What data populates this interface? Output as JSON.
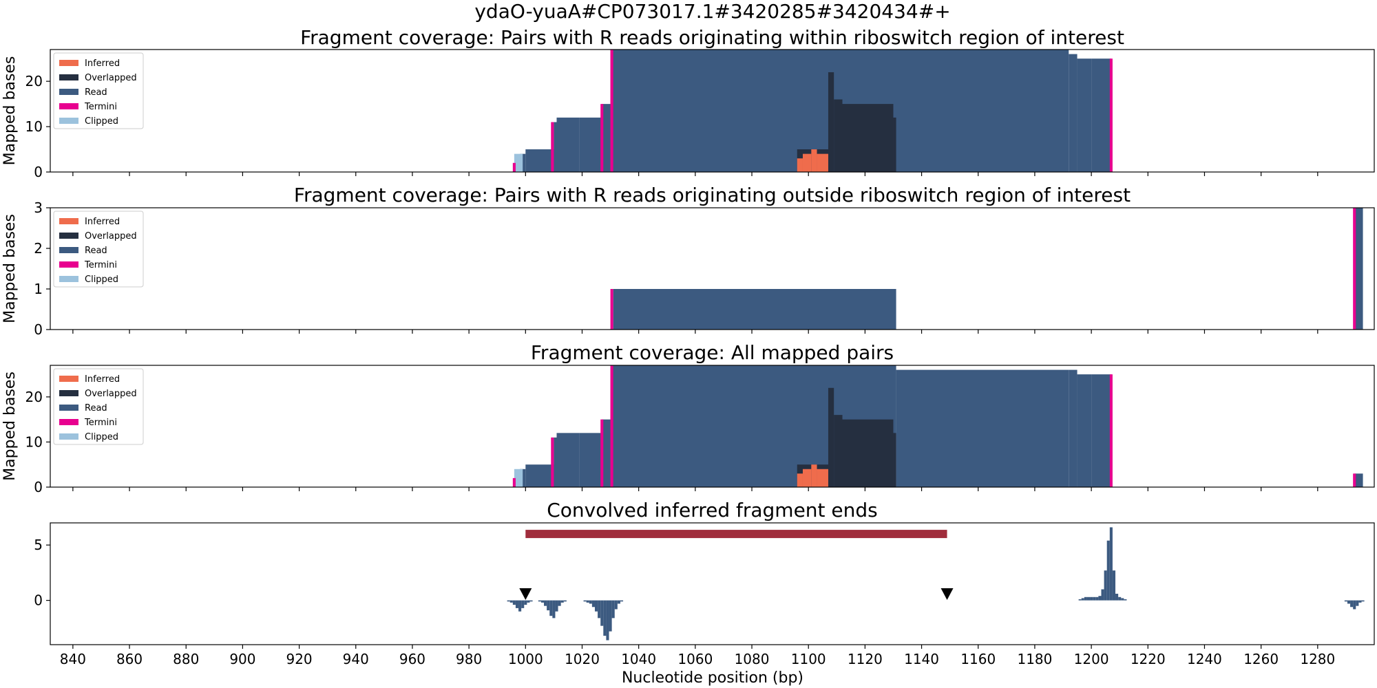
{
  "figure": {
    "title": "ydaO-yuaA#CP073017.1#3420285#3420434#+",
    "xlabel": "Nucleotide position (bp)",
    "xticks": [
      840,
      860,
      880,
      900,
      920,
      940,
      960,
      980,
      1000,
      1020,
      1040,
      1060,
      1080,
      1100,
      1120,
      1140,
      1160,
      1180,
      1200,
      1220,
      1240,
      1260,
      1280
    ],
    "xlim": [
      832,
      1300
    ]
  },
  "colors": {
    "inferred": "#ef6c4c",
    "overlapped": "#252f40",
    "read": "#3c5a80",
    "termini": "#e8008f",
    "clipped": "#9cc2dd",
    "region_bar": "#a02d3c",
    "marker": "#000000"
  },
  "legend": [
    {
      "label": "Inferred",
      "color_key": "inferred"
    },
    {
      "label": "Overlapped",
      "color_key": "overlapped"
    },
    {
      "label": "Read",
      "color_key": "read"
    },
    {
      "label": "Termini",
      "color_key": "termini"
    },
    {
      "label": "Clipped",
      "color_key": "clipped"
    }
  ],
  "chart_data": [
    {
      "type": "area",
      "title": "Fragment coverage: Pairs with R reads originating within riboswitch region of interest",
      "ylabel": "Mapped bases",
      "ylim": [
        0,
        27
      ],
      "yticks": [
        0,
        10,
        20
      ],
      "series": [
        {
          "name": "Read",
          "color_key": "read",
          "steps": [
            [
              996,
              998,
              2
            ],
            [
              998,
              1000,
              4
            ],
            [
              1000,
              1010,
              5
            ],
            [
              1010,
              1011,
              11
            ],
            [
              1011,
              1019,
              12
            ],
            [
              1019,
              1027,
              12
            ],
            [
              1027,
              1030,
              15
            ],
            [
              1030,
              1192,
              27
            ],
            [
              1192,
              1195,
              26
            ],
            [
              1195,
              1200,
              25
            ],
            [
              1200,
              1207,
              25
            ]
          ]
        },
        {
          "name": "Overlapped",
          "color_key": "overlapped",
          "steps": [
            [
              1096,
              1107,
              5
            ],
            [
              1107,
              1109,
              22
            ],
            [
              1109,
              1112,
              16
            ],
            [
              1112,
              1130,
              15
            ],
            [
              1130,
              1131,
              12
            ]
          ]
        },
        {
          "name": "Inferred",
          "color_key": "inferred",
          "steps": [
            [
              1096,
              1098,
              3
            ],
            [
              1098,
              1101,
              4
            ],
            [
              1101,
              1103,
              5
            ],
            [
              1103,
              1107,
              4
            ]
          ]
        },
        {
          "name": "Clipped",
          "color_key": "clipped",
          "steps": [
            [
              996,
              999,
              4
            ]
          ]
        },
        {
          "name": "Termini",
          "color_key": "termini",
          "steps": [
            [
              995.5,
              996.5,
              2
            ],
            [
              1009,
              1010,
              11
            ],
            [
              1026.5,
              1027.5,
              15
            ],
            [
              1030,
              1031,
              27
            ],
            [
              1206.5,
              1207.5,
              25
            ]
          ]
        }
      ]
    },
    {
      "type": "area",
      "title": "Fragment coverage: Pairs with R reads originating outside riboswitch region of interest",
      "ylabel": "Mapped bases",
      "ylim": [
        0,
        3
      ],
      "yticks": [
        0,
        1,
        2,
        3
      ],
      "series": [
        {
          "name": "Read",
          "color_key": "read",
          "steps": [
            [
              1031,
              1131,
              1
            ],
            [
              1293,
              1296,
              3
            ]
          ]
        },
        {
          "name": "Termini",
          "color_key": "termini",
          "steps": [
            [
              1030,
              1031,
              1
            ],
            [
              1292.5,
              1293.5,
              3
            ]
          ]
        }
      ]
    },
    {
      "type": "area",
      "title": "Fragment coverage: All mapped pairs",
      "ylabel": "Mapped bases",
      "ylim": [
        0,
        27
      ],
      "yticks": [
        0,
        10,
        20
      ],
      "series": [
        {
          "name": "Read",
          "color_key": "read",
          "steps": [
            [
              996,
              998,
              2
            ],
            [
              998,
              1000,
              4
            ],
            [
              1000,
              1010,
              5
            ],
            [
              1010,
              1011,
              11
            ],
            [
              1011,
              1019,
              12
            ],
            [
              1019,
              1027,
              12
            ],
            [
              1027,
              1030,
              15
            ],
            [
              1030,
              1131,
              28
            ],
            [
              1131,
              1192,
              26
            ],
            [
              1192,
              1195,
              26
            ],
            [
              1195,
              1200,
              25
            ],
            [
              1200,
              1207,
              25
            ],
            [
              1293,
              1296,
              3
            ]
          ]
        },
        {
          "name": "Overlapped",
          "color_key": "overlapped",
          "steps": [
            [
              1096,
              1107,
              5
            ],
            [
              1107,
              1109,
              22
            ],
            [
              1109,
              1112,
              16
            ],
            [
              1112,
              1130,
              15
            ],
            [
              1130,
              1131,
              12
            ]
          ]
        },
        {
          "name": "Inferred",
          "color_key": "inferred",
          "steps": [
            [
              1096,
              1098,
              3
            ],
            [
              1098,
              1101,
              4
            ],
            [
              1101,
              1103,
              5
            ],
            [
              1103,
              1107,
              4
            ]
          ]
        },
        {
          "name": "Clipped",
          "color_key": "clipped",
          "steps": [
            [
              996,
              999,
              4
            ]
          ]
        },
        {
          "name": "Termini",
          "color_key": "termini",
          "steps": [
            [
              995.5,
              996.5,
              2
            ],
            [
              1009,
              1010,
              11
            ],
            [
              1026.5,
              1027.5,
              15
            ],
            [
              1030,
              1031,
              28
            ],
            [
              1206.5,
              1207.5,
              25
            ],
            [
              1292.5,
              1293.5,
              3
            ]
          ]
        }
      ]
    },
    {
      "type": "bar",
      "title": "Convolved inferred fragment ends",
      "ylim": [
        -4,
        7
      ],
      "yticks": [
        0,
        5
      ],
      "bar_width": 1,
      "values": [
        [
          994,
          -0.1
        ],
        [
          995,
          -0.2
        ],
        [
          996,
          -0.4
        ],
        [
          997,
          -0.7
        ],
        [
          998,
          -1.0
        ],
        [
          999,
          -0.7
        ],
        [
          1000,
          -0.4
        ],
        [
          1001,
          -0.2
        ],
        [
          1002,
          -0.1
        ],
        [
          1005,
          -0.1
        ],
        [
          1006,
          -0.2
        ],
        [
          1007,
          -0.5
        ],
        [
          1008,
          -0.9
        ],
        [
          1009,
          -1.4
        ],
        [
          1010,
          -1.6
        ],
        [
          1011,
          -1.0
        ],
        [
          1012,
          -0.5
        ],
        [
          1013,
          -0.2
        ],
        [
          1014,
          -0.1
        ],
        [
          1021,
          -0.1
        ],
        [
          1022,
          -0.2
        ],
        [
          1023,
          -0.3
        ],
        [
          1024,
          -0.6
        ],
        [
          1025,
          -1.0
        ],
        [
          1026,
          -1.6
        ],
        [
          1027,
          -2.3
        ],
        [
          1028,
          -3.2
        ],
        [
          1029,
          -3.6
        ],
        [
          1030,
          -2.8
        ],
        [
          1031,
          -1.6
        ],
        [
          1032,
          -0.8
        ],
        [
          1033,
          -0.3
        ],
        [
          1034,
          -0.1
        ],
        [
          1196,
          0.1
        ],
        [
          1197,
          0.2
        ],
        [
          1198,
          0.3
        ],
        [
          1199,
          0.3
        ],
        [
          1200,
          0.3
        ],
        [
          1201,
          0.3
        ],
        [
          1202,
          0.3
        ],
        [
          1203,
          0.4
        ],
        [
          1204,
          1.0
        ],
        [
          1205,
          2.7
        ],
        [
          1206,
          5.4
        ],
        [
          1207,
          6.6
        ],
        [
          1208,
          2.7
        ],
        [
          1209,
          0.6
        ],
        [
          1210,
          0.3
        ],
        [
          1211,
          0.2
        ],
        [
          1212,
          0.1
        ],
        [
          1290,
          -0.1
        ],
        [
          1291,
          -0.3
        ],
        [
          1292,
          -0.6
        ],
        [
          1293,
          -0.8
        ],
        [
          1294,
          -0.5
        ],
        [
          1295,
          -0.2
        ],
        [
          1296,
          -0.1
        ]
      ],
      "region": {
        "start": 1000,
        "end": 1149,
        "y": 6
      },
      "markers": [
        {
          "x": 1000,
          "y": 0.6
        },
        {
          "x": 1149,
          "y": 0.6
        }
      ]
    }
  ]
}
